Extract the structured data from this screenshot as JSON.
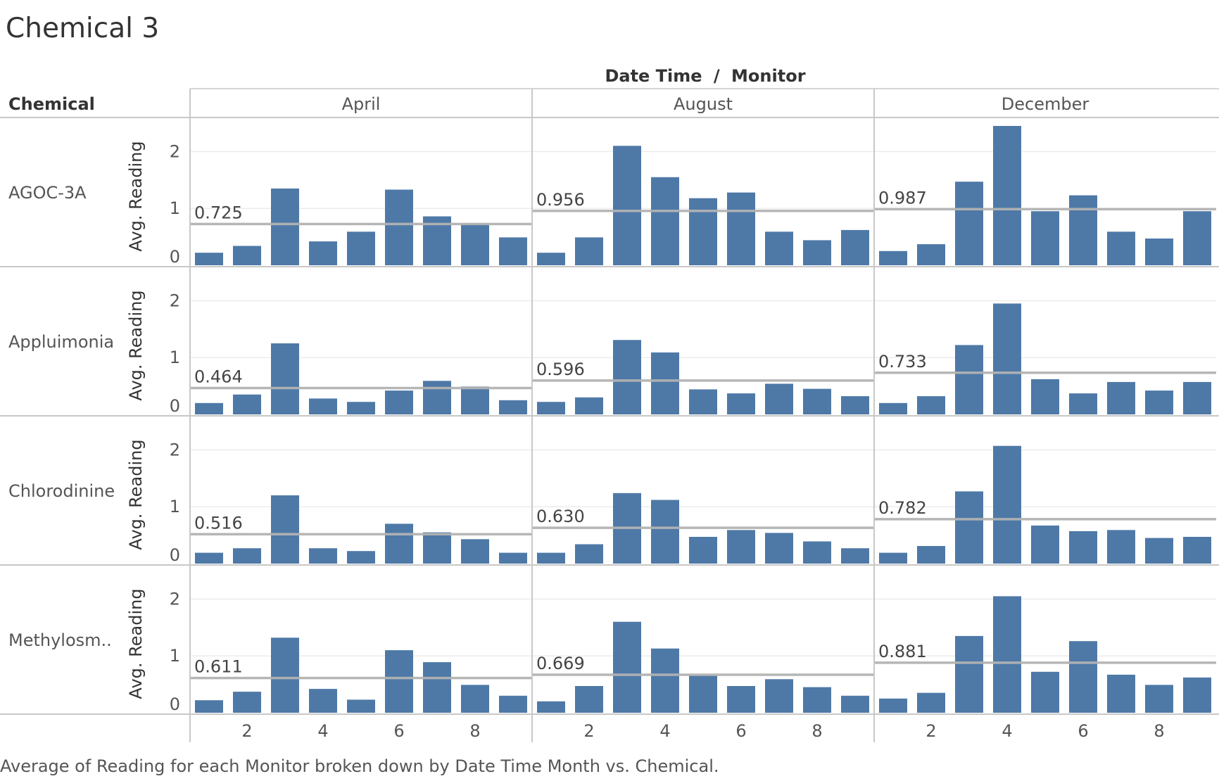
{
  "title": "Chemical 3",
  "column_header": {
    "left": "Date Time",
    "sep": "/",
    "right": "Monitor"
  },
  "row_header_label": "Chemical",
  "caption": "Average of Reading for each Monitor broken down by Date Time Month vs. Chemical.",
  "colors": {
    "bar": "#4e79a7",
    "refline": "#b3b3b3",
    "grid": "#ececec",
    "border": "#c8c8c8"
  },
  "chart_data": {
    "type": "bar",
    "columns": [
      "April",
      "August",
      "December"
    ],
    "rows": [
      "AGOC-3A",
      "Appluimonia",
      "Chlorodinine",
      "Methylosm.."
    ],
    "x": [
      1,
      2,
      3,
      4,
      5,
      6,
      7,
      8,
      9
    ],
    "x_ticks": [
      "2",
      "4",
      "6",
      "8"
    ],
    "y_ticks": [
      "0",
      "1",
      "2"
    ],
    "ylabel": "Avg. Reading",
    "ylim": [
      0,
      2.5
    ],
    "reference_line": "average",
    "cells": [
      [
        {
          "values": [
            0.22,
            0.34,
            1.35,
            0.42,
            0.59,
            1.33,
            0.86,
            0.73,
            0.49
          ],
          "avg": 0.725,
          "avg_label": "0.725"
        },
        {
          "values": [
            0.22,
            0.49,
            2.1,
            1.55,
            1.18,
            1.28,
            0.59,
            0.44,
            0.62
          ],
          "avg": 0.956,
          "avg_label": "0.956"
        },
        {
          "values": [
            0.25,
            0.37,
            1.47,
            2.45,
            0.95,
            1.23,
            0.59,
            0.47,
            0.95
          ],
          "avg": 0.987,
          "avg_label": "0.987"
        }
      ],
      [
        {
          "values": [
            0.2,
            0.35,
            1.25,
            0.28,
            0.22,
            0.42,
            0.59,
            0.49,
            0.25
          ],
          "avg": 0.464,
          "avg_label": "0.464"
        },
        {
          "values": [
            0.22,
            0.3,
            1.31,
            1.09,
            0.44,
            0.37,
            0.54,
            0.45,
            0.32
          ],
          "avg": 0.596,
          "avg_label": "0.596"
        },
        {
          "values": [
            0.2,
            0.32,
            1.22,
            1.95,
            0.62,
            0.37,
            0.57,
            0.42,
            0.57
          ],
          "avg": 0.733,
          "avg_label": "0.733"
        }
      ],
      [
        {
          "values": [
            0.19,
            0.27,
            1.2,
            0.27,
            0.22,
            0.7,
            0.55,
            0.43,
            0.19
          ],
          "avg": 0.516,
          "avg_label": "0.516"
        },
        {
          "values": [
            0.19,
            0.34,
            1.24,
            1.12,
            0.47,
            0.59,
            0.54,
            0.39,
            0.27
          ],
          "avg": 0.63,
          "avg_label": "0.630"
        },
        {
          "values": [
            0.19,
            0.31,
            1.27,
            2.07,
            0.67,
            0.57,
            0.59,
            0.45,
            0.47
          ],
          "avg": 0.782,
          "avg_label": "0.782"
        }
      ],
      [
        {
          "values": [
            0.22,
            0.37,
            1.32,
            0.42,
            0.23,
            1.1,
            0.89,
            0.49,
            0.3
          ],
          "avg": 0.611,
          "avg_label": "0.611"
        },
        {
          "values": [
            0.2,
            0.47,
            1.6,
            1.13,
            0.65,
            0.47,
            0.59,
            0.45,
            0.3
          ],
          "avg": 0.669,
          "avg_label": "0.669"
        },
        {
          "values": [
            0.25,
            0.35,
            1.35,
            2.05,
            0.72,
            1.26,
            0.67,
            0.49,
            0.62
          ],
          "avg": 0.881,
          "avg_label": "0.881"
        }
      ]
    ]
  }
}
